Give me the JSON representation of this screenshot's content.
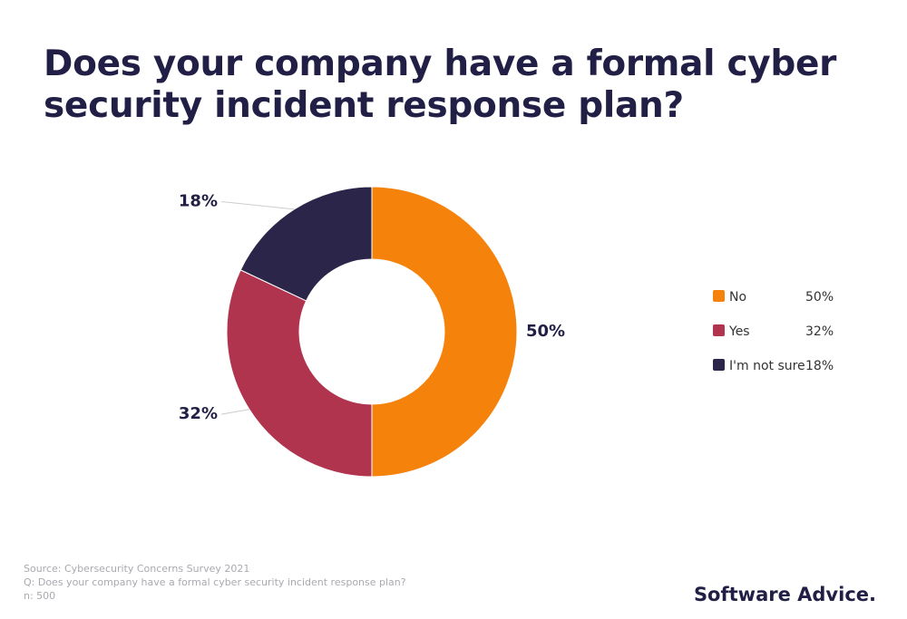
{
  "chart_data": {
    "type": "pie",
    "title": "Does your company have a formal cyber security incident response plan?",
    "categories": [
      "No",
      "Yes",
      "I'm not sure"
    ],
    "values": [
      50,
      32,
      18
    ],
    "value_labels": [
      "50%",
      "32%",
      "18%"
    ],
    "colors": [
      "#f5820b",
      "#b0344e",
      "#2b2649"
    ],
    "donut": true,
    "legend": "right",
    "notes": [
      "Source: Cybersecurity Concerns Survey 2021",
      "Q: Does your company have a formal cyber security incident response plan?",
      "n: 500"
    ],
    "brand": "Software Advice."
  }
}
